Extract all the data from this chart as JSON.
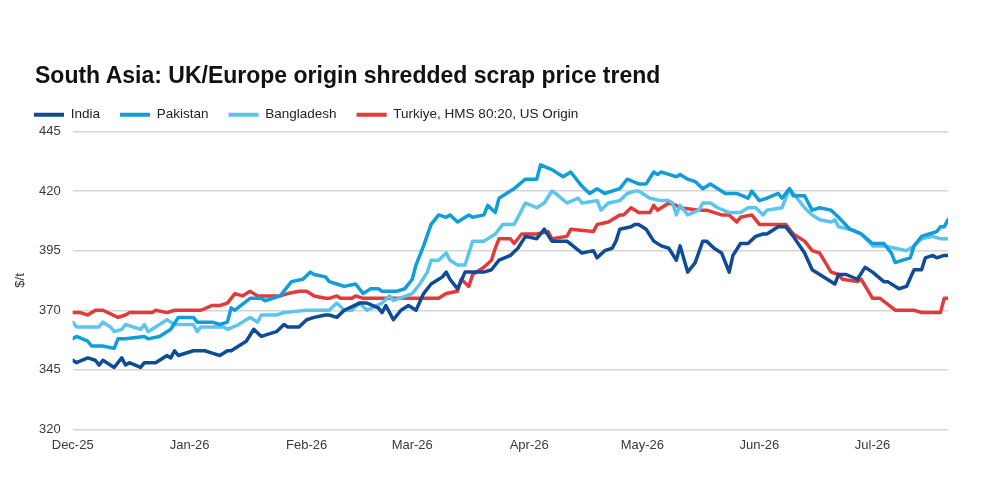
{
  "chart_data": {
    "type": "line",
    "title": "South Asia: UK/Europe origin shredded scrap price trend",
    "ylabel": "$/t",
    "legend": "top left",
    "grid": "y",
    "marker": "none",
    "xlim": [
      "2025-12-01",
      "2026-07-21"
    ],
    "xticks": [
      {
        "value": "2025-12-01",
        "label": "Dec-25"
      },
      {
        "value": "2026-01-01",
        "label": "Jan-26"
      },
      {
        "value": "2026-02-01",
        "label": "Feb-26"
      },
      {
        "value": "2026-03-01",
        "label": "Mar-26"
      },
      {
        "value": "2026-04-01",
        "label": "Apr-26"
      },
      {
        "value": "2026-05-01",
        "label": "May-26"
      },
      {
        "value": "2026-06-01",
        "label": "Jun-26"
      },
      {
        "value": "2026-07-01",
        "label": "Jul-26"
      }
    ],
    "ylim": [
      320,
      445
    ],
    "yticks": [
      320,
      345,
      370,
      395,
      420,
      445
    ],
    "series": [
      {
        "name": "India",
        "color": "#0e4c96",
        "x": [
          "2025-12-01",
          "2025-12-02",
          "2025-12-05",
          "2025-12-07",
          "2025-12-08",
          "2025-12-09",
          "2025-12-12",
          "2025-12-14",
          "2025-12-15",
          "2025-12-16",
          "2025-12-19",
          "2025-12-20",
          "2025-12-23",
          "2025-12-26",
          "2025-12-27",
          "2025-12-28",
          "2025-12-29",
          "2026-01-02",
          "2026-01-05",
          "2026-01-07",
          "2026-01-09",
          "2026-01-11",
          "2026-01-12",
          "2026-01-16",
          "2026-01-18",
          "2026-01-20",
          "2026-01-24",
          "2026-01-26",
          "2026-01-27",
          "2026-01-29",
          "2026-01-30",
          "2026-02-01",
          "2026-02-03",
          "2026-02-06",
          "2026-02-07",
          "2026-02-09",
          "2026-02-11",
          "2026-02-15",
          "2026-02-17",
          "2026-02-20",
          "2026-02-21",
          "2026-02-22",
          "2026-02-24",
          "2026-02-26",
          "2026-02-28",
          "2026-03-02",
          "2026-03-04",
          "2026-03-06",
          "2026-03-08",
          "2026-03-09",
          "2026-03-10",
          "2026-03-11",
          "2026-03-13",
          "2026-03-15",
          "2026-03-20",
          "2026-03-22",
          "2026-03-24",
          "2026-03-27",
          "2026-03-29",
          "2026-03-31",
          "2026-04-03",
          "2026-04-05",
          "2026-04-07",
          "2026-04-11",
          "2026-04-15",
          "2026-04-18",
          "2026-04-19",
          "2026-04-21",
          "2026-04-23",
          "2026-04-24",
          "2026-04-25",
          "2026-04-28",
          "2026-04-29",
          "2026-04-30",
          "2026-05-02",
          "2026-05-04",
          "2026-05-06",
          "2026-05-08",
          "2026-05-10",
          "2026-05-11",
          "2026-05-13",
          "2026-05-15",
          "2026-05-17",
          "2026-05-18",
          "2026-05-20",
          "2026-05-22",
          "2026-05-24",
          "2026-05-25",
          "2026-05-27",
          "2026-05-29",
          "2026-05-31",
          "2026-06-02",
          "2026-06-03",
          "2026-06-06",
          "2026-06-08",
          "2026-06-10",
          "2026-06-13",
          "2026-06-15",
          "2026-06-19",
          "2026-06-21",
          "2026-06-22",
          "2026-06-24",
          "2026-06-27",
          "2026-06-29",
          "2026-07-01",
          "2026-07-04",
          "2026-07-05",
          "2026-07-08",
          "2026-07-10",
          "2026-07-12",
          "2026-07-14",
          "2026-07-15",
          "2026-07-17",
          "2026-07-18",
          "2026-07-20",
          "2026-07-21"
        ],
        "values": [
          349,
          348,
          350,
          349,
          347,
          349,
          346,
          350,
          347,
          348,
          346,
          348,
          348,
          351,
          350,
          353,
          351,
          353,
          353,
          352,
          351,
          353,
          353,
          357,
          362,
          359,
          361,
          364,
          363,
          363,
          363,
          366,
          367,
          368,
          368,
          367,
          370,
          373,
          373,
          371,
          369,
          372,
          366,
          370,
          372,
          370,
          377,
          381,
          383,
          384,
          386,
          383,
          379,
          386,
          386,
          387,
          391,
          393,
          396,
          401,
          400,
          404,
          399,
          399,
          394,
          395,
          392,
          395,
          396,
          399,
          404,
          405,
          406,
          406,
          404,
          399,
          397,
          396,
          391,
          397,
          386,
          390,
          399,
          399,
          396,
          394,
          386,
          393,
          398,
          398,
          401,
          402,
          402,
          405,
          405,
          401,
          394,
          387,
          383,
          381,
          385,
          385,
          383,
          388,
          386,
          382,
          382,
          379,
          380,
          387,
          387,
          392,
          393,
          392,
          393,
          393
        ]
      },
      {
        "name": "Pakistan",
        "color": "#119dd8",
        "x": [
          "2025-12-01",
          "2025-12-02",
          "2025-12-05",
          "2025-12-06",
          "2025-12-09",
          "2025-12-12",
          "2025-12-13",
          "2025-12-15",
          "2025-12-20",
          "2025-12-21",
          "2025-12-24",
          "2025-12-27",
          "2025-12-29",
          "2026-01-02",
          "2026-01-03",
          "2026-01-07",
          "2026-01-09",
          "2026-01-11",
          "2026-01-12",
          "2026-01-13",
          "2026-01-17",
          "2026-01-20",
          "2026-01-21",
          "2026-01-25",
          "2026-01-28",
          "2026-01-31",
          "2026-02-02",
          "2026-02-03",
          "2026-02-06",
          "2026-02-07",
          "2026-02-09",
          "2026-02-11",
          "2026-02-14",
          "2026-02-16",
          "2026-02-18",
          "2026-02-20",
          "2026-02-21",
          "2026-02-25",
          "2026-02-27",
          "2026-03-01",
          "2026-03-02",
          "2026-03-04",
          "2026-03-06",
          "2026-03-08",
          "2026-03-10",
          "2026-03-11",
          "2026-03-13",
          "2026-03-16",
          "2026-03-17",
          "2026-03-20",
          "2026-03-21",
          "2026-03-23",
          "2026-03-24",
          "2026-03-27",
          "2026-03-28",
          "2026-03-31",
          "2026-04-03",
          "2026-04-04",
          "2026-04-07",
          "2026-04-10",
          "2026-04-12",
          "2026-04-15",
          "2026-04-17",
          "2026-04-19",
          "2026-04-21",
          "2026-04-25",
          "2026-04-27",
          "2026-04-30",
          "2026-05-02",
          "2026-05-04",
          "2026-05-05",
          "2026-05-06",
          "2026-05-08",
          "2026-05-10",
          "2026-05-11",
          "2026-05-13",
          "2026-05-15",
          "2026-05-17",
          "2026-05-19",
          "2026-05-23",
          "2026-05-26",
          "2026-05-29",
          "2026-05-30",
          "2026-06-01",
          "2026-06-03",
          "2026-06-06",
          "2026-06-07",
          "2026-06-09",
          "2026-06-10",
          "2026-06-13",
          "2026-06-15",
          "2026-06-17",
          "2026-06-20",
          "2026-06-22",
          "2026-06-25",
          "2026-06-28",
          "2026-07-01",
          "2026-07-04",
          "2026-07-06",
          "2026-07-07",
          "2026-07-09",
          "2026-07-11",
          "2026-07-12",
          "2026-07-14",
          "2026-07-16",
          "2026-07-18",
          "2026-07-19",
          "2026-07-20",
          "2026-07-21"
        ],
        "values": [
          358,
          359,
          357,
          355,
          355,
          354,
          358,
          358,
          359,
          358,
          359,
          362,
          367,
          367,
          365,
          365,
          364,
          365,
          371,
          370,
          375,
          375,
          374,
          376,
          382,
          383,
          386,
          385,
          384,
          382,
          381,
          380,
          381,
          377,
          379,
          379,
          378,
          378,
          379,
          383,
          389,
          397,
          406,
          410,
          409,
          410,
          407,
          410,
          409,
          410,
          414,
          411,
          417,
          420,
          421,
          425,
          425,
          431,
          429,
          426,
          428,
          422,
          419,
          421,
          419,
          421,
          425,
          423,
          423,
          428,
          427,
          428,
          427,
          426,
          427,
          425,
          424,
          421,
          423,
          419,
          419,
          417,
          420,
          416,
          417,
          419,
          417,
          421,
          418,
          418,
          412,
          413,
          412,
          409,
          404,
          402,
          398,
          398,
          394,
          390,
          391,
          392,
          397,
          401,
          402,
          403,
          405,
          405,
          408
        ]
      },
      {
        "name": "Bangladesh",
        "color": "#5dc4ee",
        "x": [
          "2025-12-01",
          "2025-12-02",
          "2025-12-08",
          "2025-12-09",
          "2025-12-11",
          "2025-12-12",
          "2025-12-14",
          "2025-12-15",
          "2025-12-19",
          "2025-12-20",
          "2025-12-21",
          "2025-12-26",
          "2025-12-28",
          "2026-01-02",
          "2026-01-03",
          "2026-01-04",
          "2026-01-10",
          "2026-01-11",
          "2026-01-14",
          "2026-01-17",
          "2026-01-19",
          "2026-01-20",
          "2026-01-24",
          "2026-01-26",
          "2026-02-01",
          "2026-02-06",
          "2026-02-07",
          "2026-02-09",
          "2026-02-11",
          "2026-02-13",
          "2026-02-15",
          "2026-02-17",
          "2026-02-21",
          "2026-02-23",
          "2026-02-24",
          "2026-03-01",
          "2026-03-03",
          "2026-03-05",
          "2026-03-06",
          "2026-03-08",
          "2026-03-10",
          "2026-03-11",
          "2026-03-13",
          "2026-03-15",
          "2026-03-17",
          "2026-03-20",
          "2026-03-23",
          "2026-03-25",
          "2026-03-28",
          "2026-03-31",
          "2026-04-03",
          "2026-04-05",
          "2026-04-07",
          "2026-04-08",
          "2026-04-11",
          "2026-04-14",
          "2026-04-15",
          "2026-04-19",
          "2026-04-20",
          "2026-04-22",
          "2026-04-25",
          "2026-04-27",
          "2026-04-29",
          "2026-04-30",
          "2026-05-03",
          "2026-05-06",
          "2026-05-08",
          "2026-05-09",
          "2026-05-10",
          "2026-05-11",
          "2026-05-13",
          "2026-05-16",
          "2026-05-17",
          "2026-05-19",
          "2026-05-21",
          "2026-05-24",
          "2026-05-27",
          "2026-05-29",
          "2026-05-31",
          "2026-06-02",
          "2026-06-03",
          "2026-06-07",
          "2026-06-09",
          "2026-06-11",
          "2026-06-13",
          "2026-06-15",
          "2026-06-17",
          "2026-06-20",
          "2026-06-21",
          "2026-06-22",
          "2026-06-25",
          "2026-06-28",
          "2026-07-01",
          "2026-07-04",
          "2026-07-07",
          "2026-07-10",
          "2026-07-12",
          "2026-07-14",
          "2026-07-17",
          "2026-07-19",
          "2026-07-21"
        ],
        "values": [
          365,
          363,
          363,
          365,
          363,
          361,
          362,
          364,
          362,
          364,
          361,
          366,
          364,
          364,
          361,
          363,
          363,
          362,
          364,
          367,
          365,
          368,
          368,
          369,
          370,
          370,
          370,
          373,
          370,
          370,
          373,
          370,
          373,
          376,
          374,
          377,
          381,
          386,
          391,
          391,
          394,
          391,
          389,
          389,
          399,
          399,
          402,
          406,
          406,
          415,
          413,
          415,
          420,
          419,
          415,
          417,
          415,
          416,
          412,
          415,
          416,
          419,
          420,
          420,
          417,
          416,
          416,
          415,
          410,
          414,
          410,
          412,
          415,
          415,
          413,
          411,
          411,
          413,
          413,
          410,
          412,
          413,
          421,
          417,
          413,
          410,
          408,
          407,
          408,
          405,
          404,
          402,
          397,
          397,
          396,
          395,
          397,
          400,
          401,
          400,
          400
        ]
      },
      {
        "name": "Turkiye, HMS 80:20, US Origin",
        "color": "#e23b3b",
        "x": [
          "2025-12-01",
          "2025-12-03",
          "2025-12-05",
          "2025-12-07",
          "2025-12-09",
          "2025-12-13",
          "2025-12-15",
          "2025-12-16",
          "2025-12-22",
          "2025-12-23",
          "2025-12-26",
          "2025-12-28",
          "2026-01-04",
          "2026-01-07",
          "2026-01-09",
          "2026-01-11",
          "2026-01-13",
          "2026-01-15",
          "2026-01-17",
          "2026-01-19",
          "2026-01-25",
          "2026-01-27",
          "2026-01-30",
          "2026-02-01",
          "2026-02-03",
          "2026-02-06",
          "2026-02-07",
          "2026-02-09",
          "2026-02-10",
          "2026-02-13",
          "2026-02-14",
          "2026-02-16",
          "2026-03-08",
          "2026-03-10",
          "2026-03-13",
          "2026-03-14",
          "2026-03-16",
          "2026-03-17",
          "2026-03-20",
          "2026-03-22",
          "2026-03-23",
          "2026-03-24",
          "2026-03-27",
          "2026-03-28",
          "2026-03-30",
          "2026-04-03",
          "2026-04-06",
          "2026-04-07",
          "2026-04-11",
          "2026-04-12",
          "2026-04-18",
          "2026-04-19",
          "2026-04-22",
          "2026-04-25",
          "2026-04-26",
          "2026-04-28",
          "2026-04-30",
          "2026-05-03",
          "2026-05-04",
          "2026-05-05",
          "2026-05-08",
          "2026-05-10",
          "2026-05-11",
          "2026-05-16",
          "2026-05-18",
          "2026-05-22",
          "2026-05-24",
          "2026-05-26",
          "2026-05-27",
          "2026-05-30",
          "2026-06-01",
          "2026-06-08",
          "2026-06-10",
          "2026-06-13",
          "2026-06-15",
          "2026-06-17",
          "2026-06-20",
          "2026-06-22",
          "2026-06-23",
          "2026-06-27",
          "2026-06-28",
          "2026-07-01",
          "2026-07-03",
          "2026-07-07",
          "2026-07-12",
          "2026-07-14",
          "2026-07-19",
          "2026-07-20",
          "2026-07-21"
        ],
        "values": [
          369,
          369,
          368,
          370,
          370,
          367,
          368,
          369,
          369,
          370,
          369,
          370,
          370,
          372,
          372,
          373,
          377,
          376,
          378,
          376,
          376,
          377,
          378,
          378,
          376,
          375,
          375,
          376,
          375,
          375,
          376,
          375,
          375,
          377,
          378,
          383,
          380,
          385,
          388,
          391,
          396,
          400,
          400,
          398,
          402,
          402,
          403,
          400,
          401,
          404,
          403,
          406,
          407,
          410,
          410,
          413,
          411,
          411,
          414,
          412,
          415,
          414,
          413,
          412,
          412,
          410,
          410,
          407,
          409,
          410,
          406,
          406,
          402,
          399,
          395,
          394,
          386,
          385,
          383,
          382,
          383,
          375,
          375,
          370,
          370,
          369,
          369,
          375,
          375
        ]
      }
    ]
  }
}
